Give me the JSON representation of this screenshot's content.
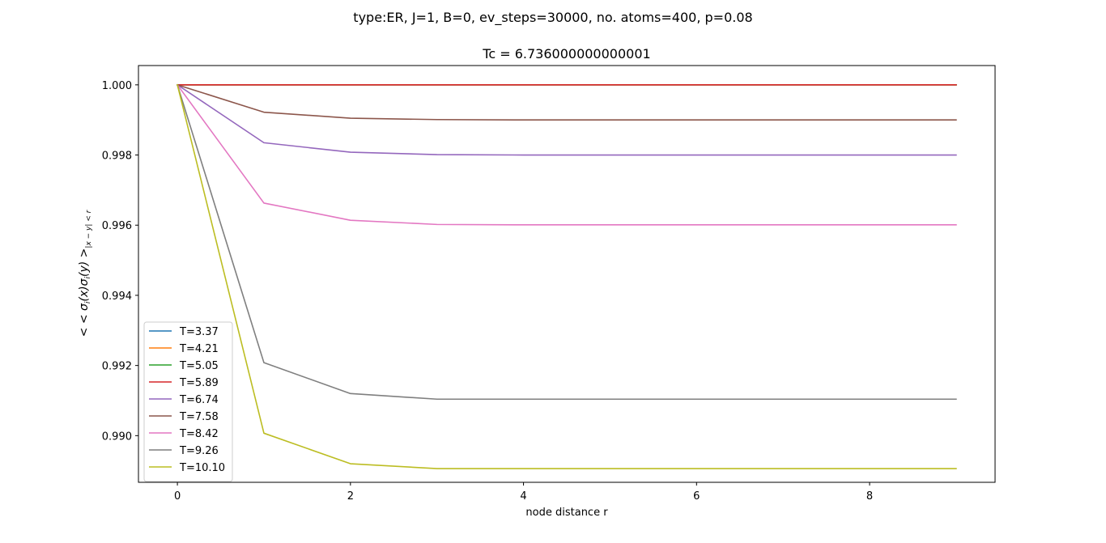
{
  "chart_data": {
    "type": "line",
    "suptitle": "type:ER, J=1, B=0, ev_steps=30000, no. atoms=400, p=0.08",
    "title": "Tc = 6.736000000000001",
    "xlabel": "node distance r",
    "ylabel": {
      "prefix": "< < ",
      "sigma": "σ",
      "i": "i",
      "x": "(x)",
      "y": "(y)",
      "suffix": " >",
      "subscript": "|x − y| < r"
    },
    "xlim": [
      -0.45,
      9.45
    ],
    "ylim": [
      0.98867,
      1.00055
    ],
    "xticks": [
      {
        "value": 0,
        "label": "0"
      },
      {
        "value": 2,
        "label": "2"
      },
      {
        "value": 4,
        "label": "4"
      },
      {
        "value": 6,
        "label": "6"
      },
      {
        "value": 8,
        "label": "8"
      }
    ],
    "yticks": [
      {
        "value": 0.99,
        "label": "0.990"
      },
      {
        "value": 0.992,
        "label": "0.992"
      },
      {
        "value": 0.994,
        "label": "0.994"
      },
      {
        "value": 0.996,
        "label": "0.996"
      },
      {
        "value": 0.998,
        "label": "0.998"
      },
      {
        "value": 1.0,
        "label": "1.000"
      }
    ],
    "grid": false,
    "legend_position": "lower-left",
    "x": [
      0,
      1,
      2,
      3,
      4,
      5,
      6,
      7,
      8,
      9
    ],
    "series": [
      {
        "name": "T=3.37",
        "color": "#1f77b4",
        "values": [
          1.0,
          1.0,
          1.0,
          1.0,
          1.0,
          1.0,
          1.0,
          1.0,
          1.0,
          1.0
        ]
      },
      {
        "name": "T=4.21",
        "color": "#ff7f0e",
        "values": [
          1.0,
          1.0,
          1.0,
          1.0,
          1.0,
          1.0,
          1.0,
          1.0,
          1.0,
          1.0
        ]
      },
      {
        "name": "T=5.05",
        "color": "#2ca02c",
        "values": [
          1.0,
          1.0,
          1.0,
          1.0,
          1.0,
          1.0,
          1.0,
          1.0,
          1.0,
          1.0
        ]
      },
      {
        "name": "T=5.89",
        "color": "#d62728",
        "values": [
          1.0,
          1.0,
          1.0,
          1.0,
          1.0,
          1.0,
          1.0,
          1.0,
          1.0,
          1.0
        ]
      },
      {
        "name": "T=6.74",
        "color": "#9467bd",
        "values": [
          1.0,
          0.99835,
          0.99808,
          0.99801,
          0.998,
          0.998,
          0.998,
          0.998,
          0.998,
          0.998
        ]
      },
      {
        "name": "T=7.58",
        "color": "#8c564b",
        "values": [
          1.0,
          0.99922,
          0.99905,
          0.99901,
          0.999,
          0.999,
          0.999,
          0.999,
          0.999,
          0.999
        ]
      },
      {
        "name": "T=8.42",
        "color": "#e377c2",
        "values": [
          1.0,
          0.99663,
          0.99614,
          0.99602,
          0.99601,
          0.99601,
          0.99601,
          0.99601,
          0.99601,
          0.99601
        ]
      },
      {
        "name": "T=9.26",
        "color": "#7f7f7f",
        "values": [
          1.0,
          0.99208,
          0.9912,
          0.99104,
          0.99104,
          0.99104,
          0.99104,
          0.99104,
          0.99104,
          0.99104
        ]
      },
      {
        "name": "T=10.10",
        "color": "#bcbd22",
        "values": [
          1.0,
          0.99007,
          0.9892,
          0.98906,
          0.98906,
          0.98906,
          0.98906,
          0.98906,
          0.98906,
          0.98906
        ]
      }
    ]
  }
}
